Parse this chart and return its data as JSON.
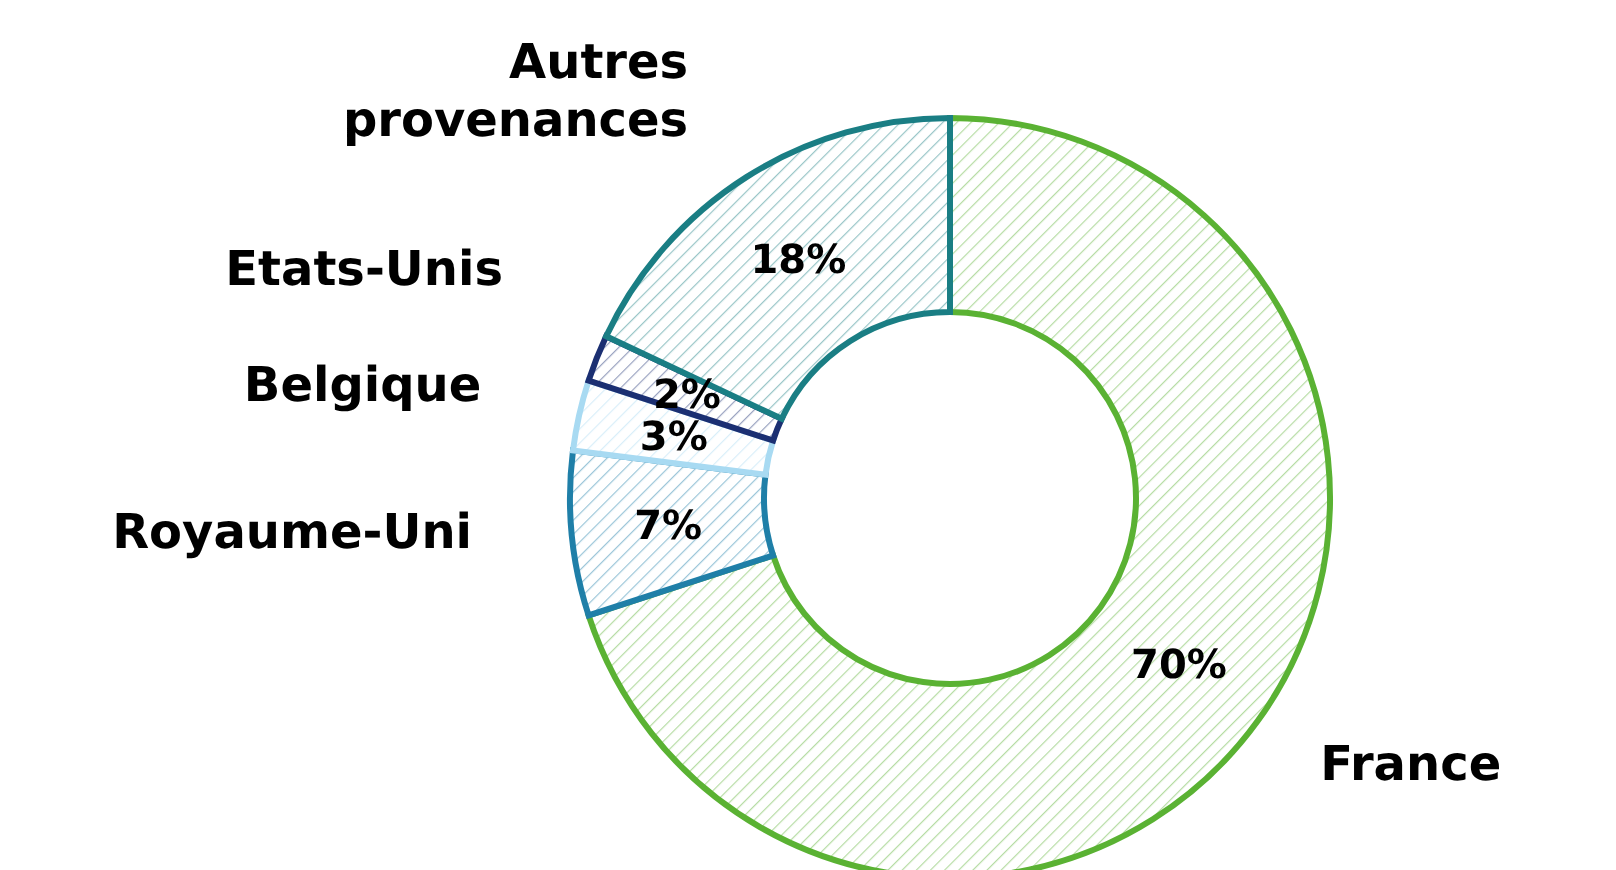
{
  "chart_data": {
    "type": "donut",
    "categories": [
      "France",
      "Royaume-Uni",
      "Belgique",
      "Etats-Unis",
      "Autres provenances"
    ],
    "values": [
      70,
      7,
      3,
      2,
      18
    ],
    "value_labels": [
      "70%",
      "7%",
      "3%",
      "2%",
      "18%"
    ],
    "colors": [
      "#5ab233",
      "#1f7fa8",
      "#a8daf2",
      "#1b2f72",
      "#1a7e84"
    ],
    "legend": false
  }
}
